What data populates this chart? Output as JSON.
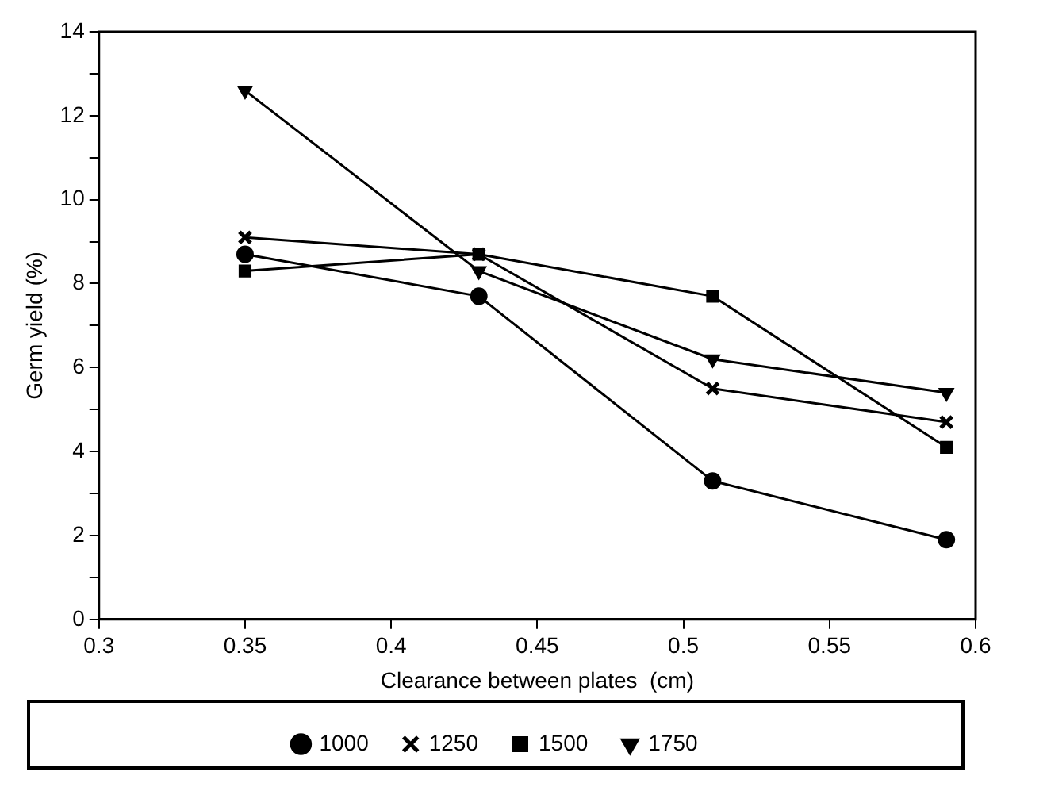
{
  "chart_data": {
    "type": "line",
    "xlabel": "Clearance between plates  (cm)",
    "ylabel": "Germ yield (%)",
    "x": [
      0.35,
      0.43,
      0.51,
      0.59
    ],
    "xlim": [
      0.3,
      0.6
    ],
    "xticks": [
      0.3,
      0.35,
      0.4,
      0.45,
      0.5,
      0.55,
      0.6
    ],
    "ylim": [
      0,
      14
    ],
    "yticks": [
      0,
      {
        "value": 1,
        "label": null
      },
      2,
      {
        "value": 3,
        "label": null
      },
      4,
      {
        "value": 5,
        "label": null
      },
      6,
      {
        "value": 7,
        "label": null
      },
      8,
      {
        "value": 9,
        "label": null
      },
      10,
      {
        "value": 11,
        "label": null
      },
      12,
      {
        "value": 13,
        "label": null
      },
      14
    ],
    "grid": false,
    "legend": "bottom",
    "series": [
      {
        "name": "1000",
        "color": "#000000",
        "marker": "circle",
        "values": [
          8.7,
          7.7,
          3.3,
          1.9
        ]
      },
      {
        "name": "1250",
        "color": "#000000",
        "marker": "cross",
        "values": [
          9.1,
          8.7,
          5.5,
          4.7
        ]
      },
      {
        "name": "1500",
        "color": "#000000",
        "marker": "square",
        "values": [
          8.3,
          8.7,
          7.7,
          4.1
        ]
      },
      {
        "name": "1750",
        "color": "#000000",
        "marker": "triangle",
        "values": [
          12.6,
          8.3,
          6.2,
          5.4
        ]
      }
    ]
  }
}
